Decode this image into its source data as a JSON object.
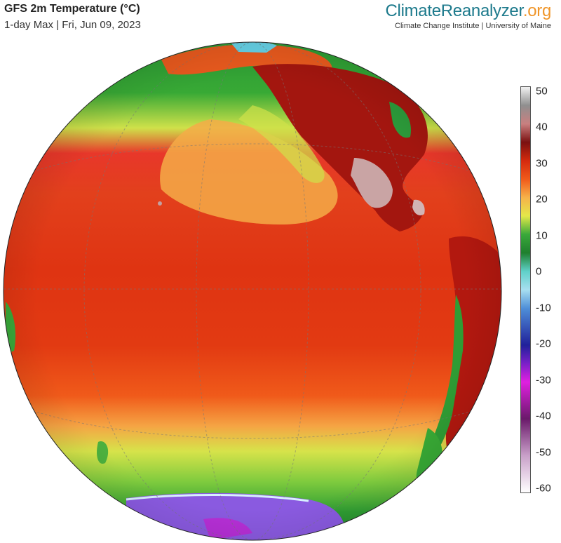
{
  "header": {
    "title": "GFS 2m Temperature (°C)",
    "subtitle": "1-day Max | Fri, Jun 09, 2023"
  },
  "brand": {
    "part1": "Climate",
    "part2": "Reanalyzer",
    "part3": ".org",
    "affiliation": "Climate Change Institute | University of Maine"
  },
  "colorbar": {
    "unit": "°C",
    "ticks": [
      "50",
      "40",
      "30",
      "20",
      "10",
      "0",
      "-10",
      "-20",
      "-30",
      "-40",
      "-50",
      "-60"
    ],
    "stops": [
      {
        "value": 50,
        "color": "#f2f2f2"
      },
      {
        "value": 45,
        "color": "#8f8f8f"
      },
      {
        "value": 40,
        "color": "#c98080"
      },
      {
        "value": 35,
        "color": "#7a1010"
      },
      {
        "value": 30,
        "color": "#d42a0e"
      },
      {
        "value": 25,
        "color": "#f05a1a"
      },
      {
        "value": 20,
        "color": "#f6b24a"
      },
      {
        "value": 15,
        "color": "#e4e84a"
      },
      {
        "value": 10,
        "color": "#3aa93a"
      },
      {
        "value": 5,
        "color": "#1f7f2e"
      },
      {
        "value": 0,
        "color": "#5fd0c8"
      },
      {
        "value": -5,
        "color": "#a8dff0"
      },
      {
        "value": -10,
        "color": "#4f8fd8"
      },
      {
        "value": -20,
        "color": "#20209a"
      },
      {
        "value": -25,
        "color": "#7a20c8"
      },
      {
        "value": -30,
        "color": "#e020e0"
      },
      {
        "value": -40,
        "color": "#6a1a6a"
      },
      {
        "value": -50,
        "color": "#c9a0c9"
      },
      {
        "value": -60,
        "color": "#ffffff"
      }
    ]
  },
  "map": {
    "projection": "orthographic",
    "colors": {
      "tropical_ocean": "#e23a12",
      "warm_ocean": "#f06a22",
      "mild_ocean": "#f7b34e",
      "cool_band": "#d9e64a",
      "cold_band": "#3fae3a",
      "polar_land": "#8a5ae0",
      "hot_land": "#a31510",
      "very_hot_land": "#c9a0a0"
    }
  }
}
